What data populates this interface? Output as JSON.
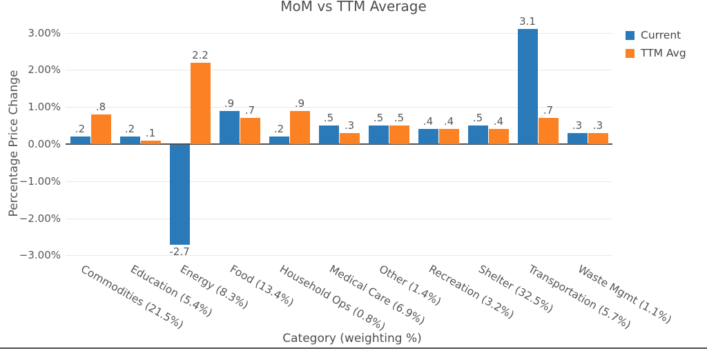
{
  "title": "MoM vs TTM Average",
  "legend": {
    "position": "top-right",
    "items": [
      {
        "label": "Current",
        "color": "#2a7ab9"
      },
      {
        "label": "TTM Avg",
        "color": "#fb8122"
      }
    ]
  },
  "chart_data": {
    "type": "bar",
    "title": "MoM vs TTM Average",
    "xlabel": "Category (weighting %)",
    "ylabel": "Percentage Price Change",
    "ylim": [
      -3,
      3
    ],
    "grid": true,
    "legend_position": "top-right",
    "yticks": [
      3,
      2,
      1,
      0,
      -1,
      -2,
      -3
    ],
    "ytick_labels": [
      "3.00%",
      "2.00%",
      "1.00%",
      "0.00%",
      "−1.00%",
      "−2.00%",
      "−3.00%"
    ],
    "categories": [
      "Commodities (21.5%)",
      "Education (5.4%)",
      "Energy (8.3%)",
      "Food (13.4%)",
      "Household Ops (0.8%)",
      "Medical Care (6.9%)",
      "Other (1.4%)",
      "Recreation (3.2%)",
      "Shelter (32.5%)",
      "Transportation (5.7%)",
      "Waste Mgmt (1.1%)"
    ],
    "series": [
      {
        "name": "Current",
        "color": "#2a7ab9",
        "values": [
          0.2,
          0.2,
          -2.7,
          0.9,
          0.2,
          0.5,
          0.5,
          0.4,
          0.5,
          3.1,
          0.3
        ],
        "labels": [
          ".2",
          ".2",
          "-2.7",
          ".9",
          ".2",
          ".5",
          ".5",
          ".4",
          ".5",
          "3.1",
          ".3"
        ]
      },
      {
        "name": "TTM Avg",
        "color": "#fb8122",
        "values": [
          0.8,
          0.1,
          2.2,
          0.7,
          0.9,
          0.3,
          0.5,
          0.4,
          0.4,
          0.7,
          0.3
        ],
        "labels": [
          ".8",
          ".1",
          "2.2",
          ".7",
          ".9",
          ".3",
          ".5",
          ".4",
          ".4",
          ".7",
          ".3"
        ]
      }
    ]
  }
}
